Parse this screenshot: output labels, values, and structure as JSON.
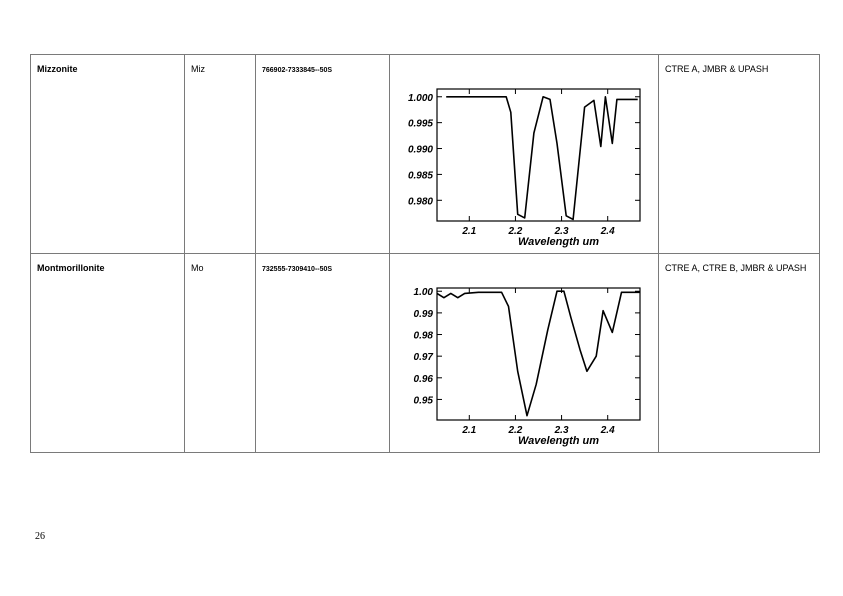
{
  "rows": [
    {
      "name": "Mizzonite",
      "abbrev": "Miz",
      "coords": "766902-7333845--50S",
      "sources": "CTRE A, JMBR & UPASH"
    },
    {
      "name": "Montmorillonite",
      "abbrev": "Mo",
      "coords": "732555-7309410--50S",
      "sources": "CTRE A, CTRE B, JMBR & UPASH"
    }
  ],
  "page_number": "26",
  "chart_data": [
    {
      "type": "line",
      "xlabel": "Wavelength um",
      "xlim": [
        2.03,
        2.47
      ],
      "ylim": [
        0.976,
        1.0015
      ],
      "x_ticks": [
        "2.1",
        "2.2",
        "2.3",
        "2.4"
      ],
      "x_tick_values": [
        2.1,
        2.2,
        2.3,
        2.4
      ],
      "y_ticks": [
        "1.000",
        "0.995",
        "0.990",
        "0.985",
        "0.980"
      ],
      "y_tick_values": [
        1.0,
        0.995,
        0.99,
        0.985,
        0.98
      ],
      "x": [
        2.05,
        2.18,
        2.19,
        2.205,
        2.22,
        2.24,
        2.26,
        2.275,
        2.29,
        2.31,
        2.325,
        2.35,
        2.37,
        2.385,
        2.395,
        2.41,
        2.42,
        2.43,
        2.465
      ],
      "y": [
        1.0,
        1.0,
        0.997,
        0.9773,
        0.9766,
        0.993,
        1.0,
        0.9995,
        0.991,
        0.977,
        0.9763,
        0.998,
        0.9993,
        0.9904,
        1.0,
        0.991,
        0.9995,
        0.9995,
        0.9995
      ]
    },
    {
      "type": "line",
      "xlabel": "Wavelength um",
      "xlim": [
        2.03,
        2.47
      ],
      "ylim": [
        0.9405,
        1.0015
      ],
      "x_ticks": [
        "2.1",
        "2.2",
        "2.3",
        "2.4"
      ],
      "x_tick_values": [
        2.1,
        2.2,
        2.3,
        2.4
      ],
      "y_ticks": [
        "1.00",
        "0.99",
        "0.98",
        "0.97",
        "0.96",
        "0.95"
      ],
      "y_tick_values": [
        1.0,
        0.99,
        0.98,
        0.97,
        0.96,
        0.95
      ],
      "x": [
        2.03,
        2.045,
        2.06,
        2.075,
        2.09,
        2.12,
        2.17,
        2.185,
        2.205,
        2.225,
        2.245,
        2.27,
        2.29,
        2.305,
        2.32,
        2.34,
        2.355,
        2.375,
        2.39,
        2.41,
        2.43,
        2.47
      ],
      "y": [
        0.999,
        0.997,
        0.999,
        0.997,
        0.999,
        0.9995,
        0.9995,
        0.993,
        0.963,
        0.9425,
        0.957,
        0.982,
        1.0,
        1.0,
        0.988,
        0.973,
        0.963,
        0.97,
        0.991,
        0.981,
        0.9995,
        0.9995
      ]
    }
  ]
}
